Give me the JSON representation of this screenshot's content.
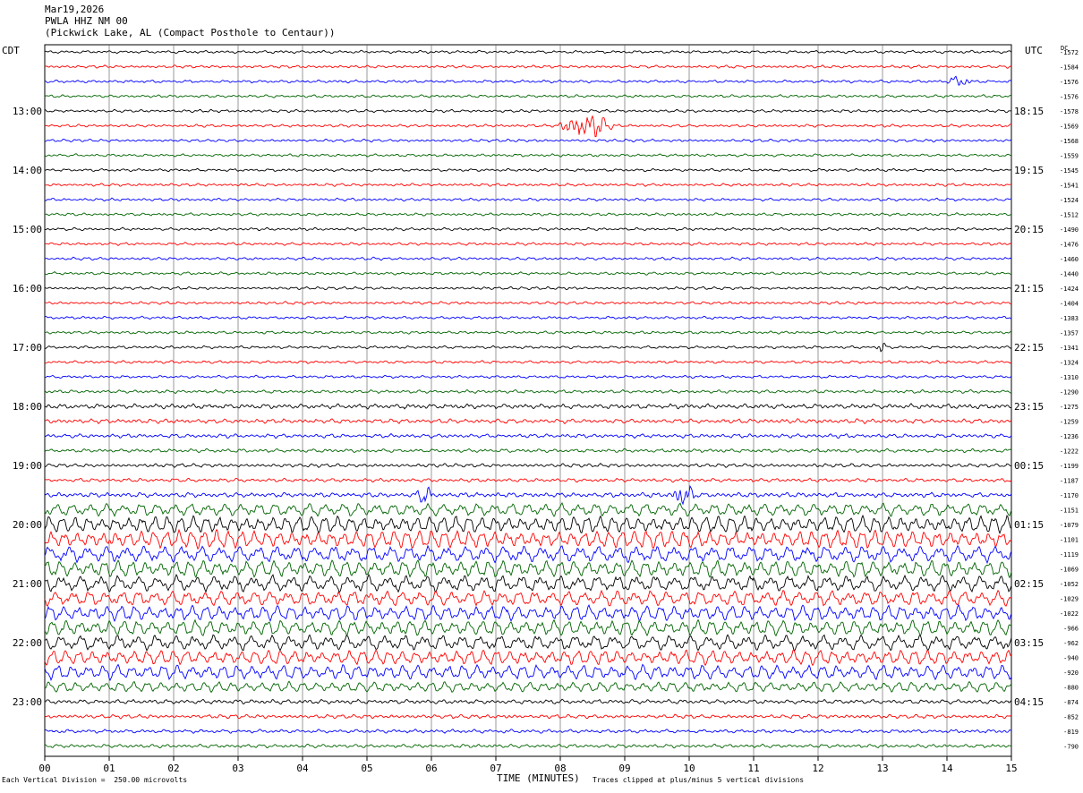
{
  "header": {
    "line1": "Mar19,2026",
    "line2": "PWLA HHZ NM 00",
    "line3": "(Pickwick Lake, AL (Compact Posthole to Centaur))"
  },
  "chart_data": {
    "type": "line",
    "title": "Mar19,2026",
    "left_axis_label": "CDT",
    "right_axis_label": "UTC",
    "dc_label": "DC",
    "xlabel": "TIME (MINUTES)",
    "x_ticks": [
      "00",
      "01",
      "02",
      "03",
      "04",
      "05",
      "06",
      "07",
      "08",
      "09",
      "10",
      "11",
      "12",
      "13",
      "14",
      "15"
    ],
    "xlim": [
      0,
      15
    ],
    "trace_colors": [
      "#000000",
      "#ff0000",
      "#0000ff",
      "#006400"
    ],
    "left_hour_labels": [
      {
        "trace": 4,
        "label": "13:00"
      },
      {
        "trace": 8,
        "label": "14:00"
      },
      {
        "trace": 12,
        "label": "15:00"
      },
      {
        "trace": 16,
        "label": "16:00"
      },
      {
        "trace": 20,
        "label": "17:00"
      },
      {
        "trace": 24,
        "label": "18:00"
      },
      {
        "trace": 28,
        "label": "19:00"
      },
      {
        "trace": 32,
        "label": "20:00"
      },
      {
        "trace": 36,
        "label": "21:00"
      },
      {
        "trace": 40,
        "label": "22:00"
      },
      {
        "trace": 44,
        "label": "23:00"
      }
    ],
    "right_hour_labels": [
      {
        "trace": 4,
        "label": "18:15"
      },
      {
        "trace": 8,
        "label": "19:15"
      },
      {
        "trace": 12,
        "label": "20:15"
      },
      {
        "trace": 16,
        "label": "21:15"
      },
      {
        "trace": 20,
        "label": "22:15"
      },
      {
        "trace": 24,
        "label": "23:15"
      },
      {
        "trace": 28,
        "label": "00:15"
      },
      {
        "trace": 32,
        "label": "01:15"
      },
      {
        "trace": 36,
        "label": "02:15"
      },
      {
        "trace": 40,
        "label": "03:15"
      },
      {
        "trace": 44,
        "label": "04:15"
      }
    ],
    "dc_offsets": [
      "-1572",
      "-1584",
      "-1576",
      "-1576",
      "-1578",
      "-1569",
      "-1568",
      "-1559",
      "-1545",
      "-1541",
      "-1524",
      "-1512",
      "-1490",
      "-1476",
      "-1460",
      "-1440",
      "-1424",
      "-1404",
      "-1383",
      "-1357",
      "-1341",
      "-1324",
      "-1310",
      "-1290",
      "-1275",
      "-1259",
      "-1236",
      "-1222",
      "-1199",
      "-1187",
      "-1170",
      "-1151",
      "-1079",
      "-1101",
      "-1119",
      "-1069",
      "-1052",
      "-1029",
      "-1022",
      "-966",
      "-962",
      "-940",
      "-920",
      "-880",
      "-874",
      "-852",
      "-819",
      "-790"
    ],
    "trace_amplitudes": [
      0.7,
      0.7,
      0.7,
      0.7,
      0.7,
      0.7,
      0.7,
      0.7,
      0.7,
      0.7,
      0.7,
      0.7,
      0.7,
      0.7,
      0.7,
      0.7,
      0.7,
      0.7,
      0.7,
      0.7,
      0.7,
      0.7,
      0.7,
      0.8,
      1.2,
      1.1,
      1.0,
      0.9,
      0.9,
      0.9,
      1.2,
      2.0,
      2.6,
      2.8,
      2.6,
      2.6,
      2.6,
      2.4,
      2.4,
      2.4,
      2.4,
      2.3,
      2.3,
      1.6,
      1.1,
      1.0,
      0.9,
      0.9
    ],
    "events": [
      {
        "trace": 5,
        "minute": 8.4,
        "amplitude": 7,
        "duration_min": 0.9
      },
      {
        "trace": 2,
        "minute": 14.2,
        "amplitude": 3,
        "duration_min": 0.4
      },
      {
        "trace": 20,
        "minute": 13.0,
        "amplitude": 3,
        "duration_min": 0.2
      },
      {
        "trace": 30,
        "minute": 5.9,
        "amplitude": 4,
        "duration_min": 0.3
      },
      {
        "trace": 30,
        "minute": 9.9,
        "amplitude": 6,
        "duration_min": 0.4
      }
    ]
  },
  "footer": {
    "scale_note": "Each Vertical Division =  250.00 microvolts",
    "clip_note": "Traces clipped at plus/minus 5 vertical divisions"
  }
}
